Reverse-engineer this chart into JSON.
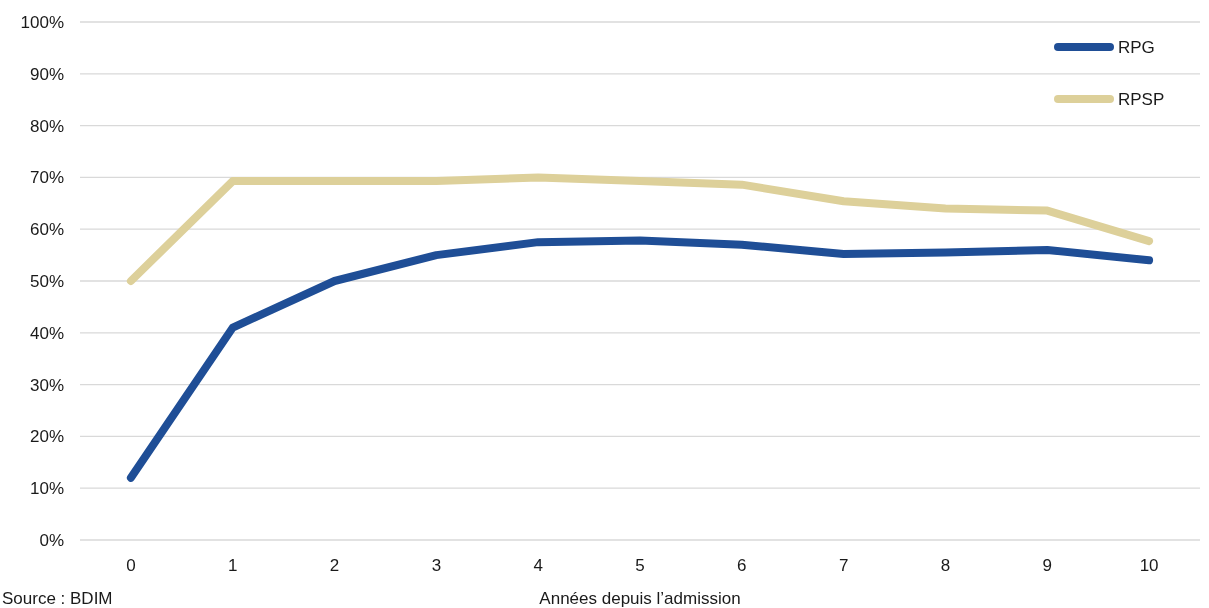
{
  "chart_data": {
    "type": "line",
    "xlabel": "Années depuis l’admission",
    "categories": [
      "0",
      "1",
      "2",
      "3",
      "4",
      "5",
      "6",
      "7",
      "8",
      "9",
      "10"
    ],
    "series": [
      {
        "name": "RPG",
        "color": "#1f4e96",
        "values": [
          12,
          41,
          50,
          55,
          57.5,
          57.8,
          57,
          55.2,
          55.5,
          56,
          54
        ]
      },
      {
        "name": "RPSP",
        "color": "#ddd09a",
        "values": [
          50,
          69.3,
          69.3,
          69.3,
          70,
          69.3,
          68.6,
          65.4,
          64,
          63.6,
          57.7
        ]
      }
    ],
    "ylim": [
      0,
      100
    ],
    "yticks": [
      {
        "value": 0,
        "label": "0%"
      },
      {
        "value": 10,
        "label": "10%"
      },
      {
        "value": 20,
        "label": "20%"
      },
      {
        "value": 30,
        "label": "30%"
      },
      {
        "value": 40,
        "label": "40%"
      },
      {
        "value": 50,
        "label": "50%"
      },
      {
        "value": 60,
        "label": "60%"
      },
      {
        "value": 70,
        "label": "70%"
      },
      {
        "value": 80,
        "label": "80%"
      },
      {
        "value": 90,
        "label": "90%"
      },
      {
        "value": 100,
        "label": "100%"
      }
    ],
    "grid": "y",
    "legend": "top right",
    "marker": "none",
    "line_style": "solid",
    "annotations": [
      "Source : BDIM"
    ]
  }
}
